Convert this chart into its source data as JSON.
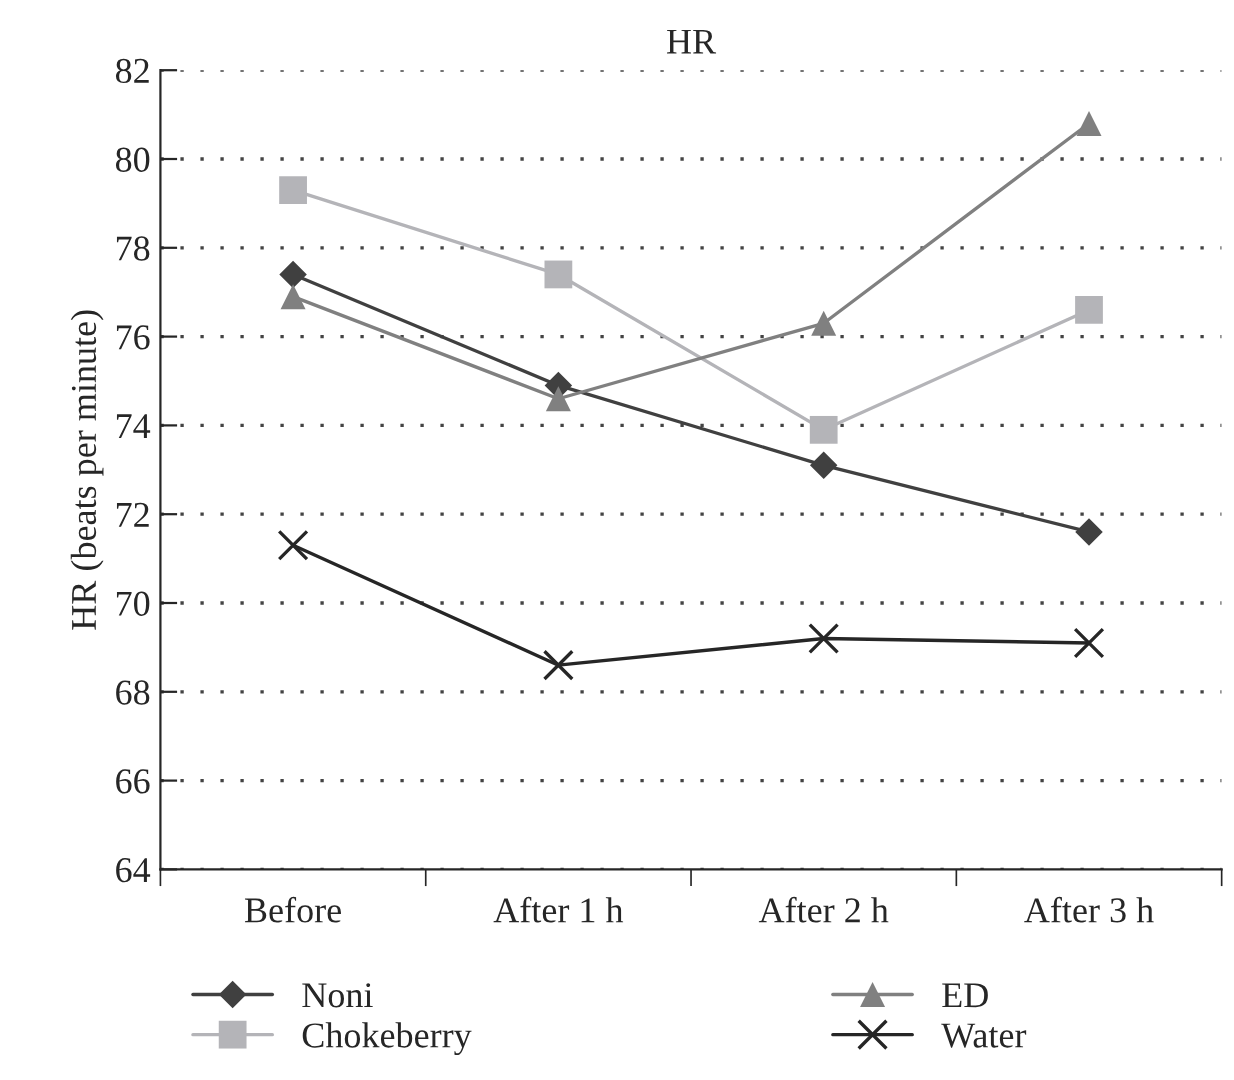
{
  "chart_data": {
    "type": "line",
    "title": "HR",
    "ylabel": "HR (beats per minute)",
    "categories": [
      "Before",
      "After 1 h",
      "After 2 h",
      "After 3 h"
    ],
    "series": [
      {
        "name": "Noni",
        "color": "#404040",
        "marker": "diamond",
        "values": [
          77.4,
          74.9,
          73.1,
          71.6
        ]
      },
      {
        "name": "Chokeberry",
        "color": "#b4b4b8",
        "marker": "square",
        "values": [
          79.3,
          77.4,
          73.9,
          76.6
        ]
      },
      {
        "name": "ED",
        "color": "#808080",
        "marker": "triangle",
        "values": [
          76.9,
          74.6,
          76.3,
          80.8
        ]
      },
      {
        "name": "Water",
        "color": "#262626",
        "marker": "cross",
        "values": [
          71.3,
          68.6,
          69.2,
          69.1
        ]
      }
    ],
    "ylim": [
      64,
      82
    ],
    "yticks": [
      64,
      66,
      68,
      70,
      72,
      74,
      76,
      78,
      80,
      82
    ],
    "grid": "y",
    "legend": "bottom",
    "line_style": "solid"
  }
}
